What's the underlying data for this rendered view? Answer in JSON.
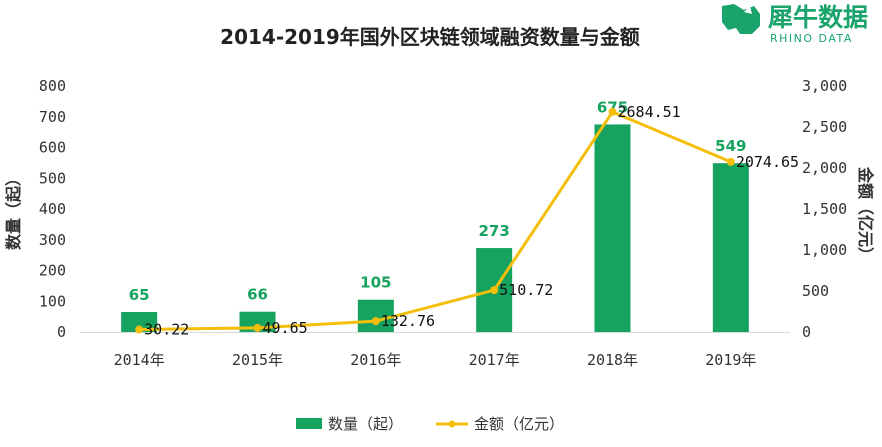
{
  "logo": {
    "text_cn": "犀牛数据",
    "text_en": "RHINO DATA",
    "color": "#1aa36b"
  },
  "colors": {
    "bar": "#16a35f",
    "bar_label": "#16a35f",
    "line": "#f5be0b",
    "text": "#333333"
  },
  "chart_data": {
    "type": "bar",
    "title": "2014-2019年国外区块链领域融资数量与金额",
    "categories": [
      "2014年",
      "2015年",
      "2016年",
      "2017年",
      "2018年",
      "2019年"
    ],
    "series": [
      {
        "name": "数量（起）",
        "type": "bar",
        "axis": "left",
        "values": [
          65,
          66,
          105,
          273,
          675,
          549
        ]
      },
      {
        "name": "金额（亿元）",
        "type": "line",
        "axis": "right",
        "values": [
          30.22,
          49.65,
          132.76,
          510.72,
          2684.51,
          2074.65
        ]
      }
    ],
    "bar_labels": [
      "65",
      "66",
      "105",
      "273",
      "675",
      "549"
    ],
    "line_labels": [
      "30.22",
      "49.65",
      "132.76",
      "510.72",
      "2684.51",
      "2074.65"
    ],
    "ylabel": "数量（起）",
    "ylabel_right": "金额（亿元）",
    "ylim": [
      0,
      800
    ],
    "ylim_right": [
      0,
      3000
    ],
    "yticks": [
      "0",
      "100",
      "200",
      "300",
      "400",
      "500",
      "600",
      "700",
      "800"
    ],
    "yticks_right": [
      "0",
      "500",
      "1,000",
      "1,500",
      "2,000",
      "2,500",
      "3,000"
    ],
    "legend": [
      "数量（起）",
      "金额（亿元）"
    ],
    "legend_position": "bottom",
    "grid": false
  }
}
